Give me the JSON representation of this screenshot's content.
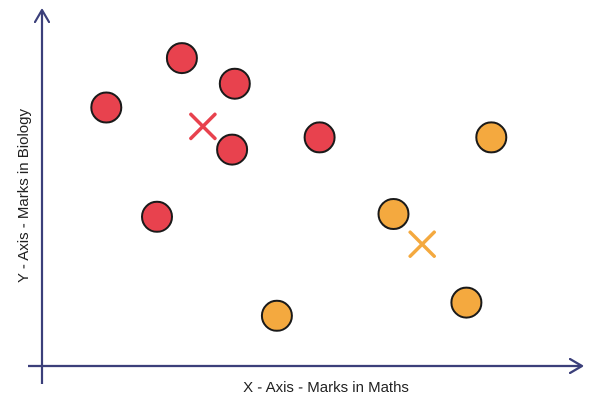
{
  "chart_data": {
    "type": "scatter",
    "xlabel": "X - Axis - Marks in Maths",
    "ylabel": "Y - Axis - Marks in Biology",
    "xlim": [
      0,
      100
    ],
    "ylim": [
      0,
      100
    ],
    "grid": false,
    "colors": {
      "axis": "#3b3f7a",
      "cluster_1": "#e8424e",
      "cluster_2": "#f4a93f",
      "outline": "#1a1a1a"
    },
    "series": [
      {
        "points": [
          {
            "x": 11.9,
            "y": 72.6
          },
          {
            "x": 25.9,
            "y": 86.5
          },
          {
            "x": 35.7,
            "y": 79.3
          },
          {
            "x": 35.2,
            "y": 60.8
          },
          {
            "x": 51.4,
            "y": 64.2
          },
          {
            "x": 21.3,
            "y": 41.9
          }
        ],
        "centroid": {
          "x": 29.8,
          "y": 67.3
        }
      },
      {
        "points": [
          {
            "x": 65.1,
            "y": 42.7
          },
          {
            "x": 83.2,
            "y": 64.2
          },
          {
            "x": 78.6,
            "y": 17.8
          },
          {
            "x": 43.5,
            "y": 14.1
          }
        ],
        "centroid": {
          "x": 70.4,
          "y": 34.2
        }
      }
    ]
  }
}
